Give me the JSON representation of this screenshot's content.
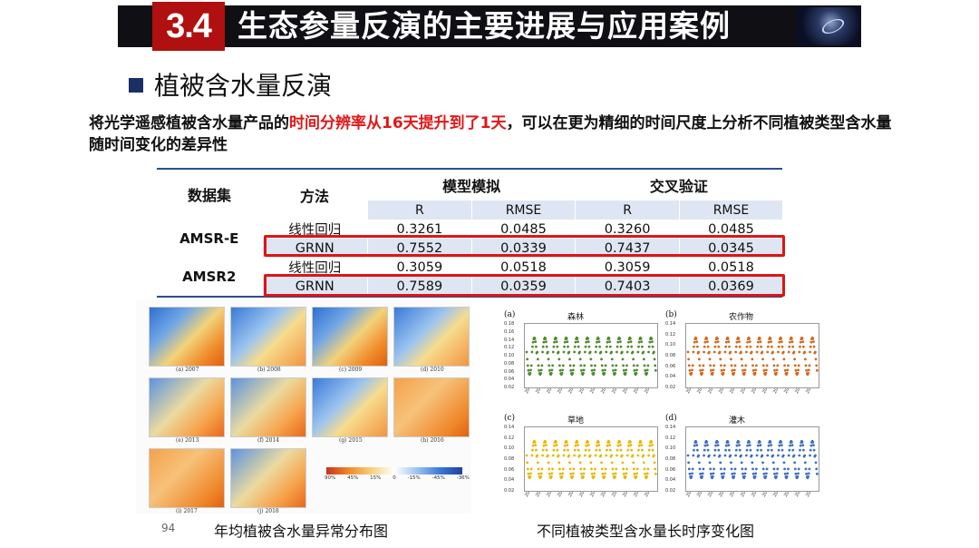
{
  "header": {
    "section_number": "3.4",
    "title": "生态参量反演的主要进展与应用案例"
  },
  "subheading": "植被含水量反演",
  "description": {
    "part1": "将光学遥感植被含水量产品的",
    "highlight": "时间分辨率从16天提升到了1天",
    "part2": "，可以在更为精细的时间尺度上分析不同植被类型含水量随时间变化的差异性"
  },
  "table": {
    "col_dataset": "数据集",
    "col_method": "方法",
    "group_sim": "模型模拟",
    "group_val": "交叉验证",
    "sub_headers": [
      "R",
      "RMSE",
      "R",
      "RMSE"
    ],
    "rows": [
      {
        "dataset": "AMSR-E",
        "method": "线性回归",
        "values": [
          "0.3261",
          "0.0485",
          "0.3260",
          "0.0485"
        ]
      },
      {
        "dataset": "",
        "method": "GRNN",
        "values": [
          "0.7552",
          "0.0339",
          "0.7437",
          "0.0345"
        ]
      },
      {
        "dataset": "AMSR2",
        "method": "线性回归",
        "values": [
          "0.3059",
          "0.0518",
          "0.3059",
          "0.0518"
        ]
      },
      {
        "dataset": "",
        "method": "GRNN",
        "values": [
          "0.7589",
          "0.0359",
          "0.7403",
          "0.0369"
        ]
      }
    ]
  },
  "maps": {
    "captions": [
      "(a) 2007",
      "(b) 2008",
      "(c) 2009",
      "(d) 2010",
      "(e) 2013",
      "(f) 2014",
      "(g) 2015",
      "(h) 2016",
      "(i) 2017",
      "(j) 2018"
    ],
    "colorbar_labels": [
      "90%",
      "45%",
      "15%",
      "0",
      "-15%",
      "-45%",
      "-36%"
    ],
    "caption": "年均植被含水量异常分布图"
  },
  "timeseries": {
    "caption": "不同植被类型含水量长时序变化图",
    "y_ticks_top": [
      "0.18",
      "0.16",
      "0.14",
      "0.12",
      "0.10",
      "0.08",
      "0.06",
      "0.04",
      "0.02"
    ],
    "y_ticks_bottom": [
      "0.14",
      "0.12",
      "0.10",
      "0.08",
      "0.06",
      "0.04",
      "0.02"
    ],
    "x_ticks": [
      "2007/1",
      "2008/1",
      "2009/1",
      "2010/1",
      "2011/1",
      "2012/1",
      "2013/1",
      "2014/1",
      "2015/1",
      "2016/1",
      "2017/1",
      "2018/1"
    ],
    "panels": [
      {
        "letter": "(a)",
        "title": "森林",
        "color": "#4f8a2e"
      },
      {
        "letter": "(b)",
        "title": "农作物",
        "color": "#d2691e"
      },
      {
        "letter": "(c)",
        "title": "草地",
        "color": "#e8b800"
      },
      {
        "letter": "(d)",
        "title": "灌木",
        "color": "#3f6fc0"
      }
    ]
  },
  "page_number": "94",
  "colors": {
    "accent_red": "#e11818",
    "header_bg": "#0f0f14",
    "badge_red": "#b01010",
    "table_line": "#2b4f8a",
    "table_shade": "#dfe6f3"
  }
}
